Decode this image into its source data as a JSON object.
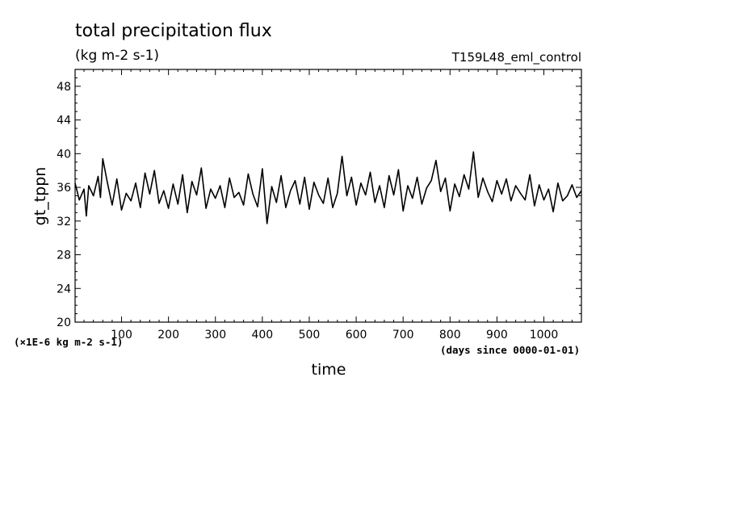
{
  "chart_data": {
    "type": "line",
    "title": "total precipitation flux",
    "subtitle": "(kg m-2 s-1)",
    "run_label": "T159L48_eml_control",
    "xlabel": "time",
    "x_units": "(days since 0000-01-01)",
    "ylabel": "gt_tppn",
    "y_multiplier": "(×1E-6 kg m-2 s-1)",
    "xlim": [
      1,
      1080
    ],
    "ylim": [
      20,
      50
    ],
    "x_ticks": [
      100,
      200,
      300,
      400,
      500,
      600,
      700,
      800,
      900,
      1000
    ],
    "y_ticks": [
      20,
      24,
      28,
      32,
      36,
      40,
      44,
      48
    ],
    "grid": false,
    "series": [
      {
        "x": [
          1,
          10,
          20,
          25,
          30,
          40,
          50,
          55,
          60,
          70,
          80,
          90,
          100,
          110,
          120,
          130,
          140,
          150,
          160,
          170,
          180,
          190,
          200,
          210,
          220,
          230,
          240,
          250,
          260,
          270,
          280,
          290,
          300,
          310,
          320,
          330,
          340,
          350,
          360,
          370,
          380,
          390,
          400,
          410,
          420,
          430,
          440,
          450,
          460,
          470,
          480,
          490,
          500,
          510,
          520,
          530,
          540,
          550,
          560,
          570,
          580,
          590,
          600,
          610,
          620,
          630,
          640,
          650,
          660,
          670,
          680,
          690,
          700,
          710,
          720,
          730,
          740,
          750,
          760,
          770,
          780,
          790,
          800,
          810,
          820,
          830,
          840,
          850,
          860,
          870,
          880,
          890,
          900,
          910,
          920,
          930,
          940,
          950,
          960,
          970,
          980,
          990,
          1000,
          1010,
          1020,
          1030,
          1040,
          1050,
          1060,
          1070,
          1080
        ],
        "y": [
          36.5,
          34.5,
          35.8,
          32.6,
          36.2,
          35.0,
          37.3,
          34.8,
          39.4,
          36.5,
          33.9,
          37.0,
          33.3,
          35.3,
          34.4,
          36.5,
          33.6,
          37.7,
          35.2,
          38.0,
          34.1,
          35.6,
          33.5,
          36.4,
          34.0,
          37.5,
          33.0,
          36.7,
          35.1,
          38.3,
          33.5,
          35.8,
          34.7,
          36.2,
          33.6,
          37.1,
          34.8,
          35.4,
          33.9,
          37.6,
          35.2,
          33.7,
          38.2,
          31.7,
          36.1,
          34.2,
          37.4,
          33.6,
          35.6,
          36.8,
          34.0,
          37.2,
          33.4,
          36.6,
          35.1,
          34.1,
          37.1,
          33.6,
          35.3,
          39.7,
          35.0,
          37.2,
          33.9,
          36.5,
          35.1,
          37.8,
          34.2,
          36.2,
          33.6,
          37.4,
          35.1,
          38.1,
          33.2,
          36.2,
          34.7,
          37.2,
          34.0,
          35.9,
          36.8,
          39.2,
          35.5,
          37.1,
          33.2,
          36.4,
          34.9,
          37.5,
          35.8,
          40.2,
          34.8,
          37.1,
          35.5,
          34.3,
          36.8,
          35.2,
          37.0,
          34.4,
          36.2,
          35.3,
          34.5,
          37.5,
          33.8,
          36.3,
          34.5,
          35.8,
          33.1,
          36.5,
          34.4,
          35.0,
          36.3,
          34.8,
          35.6
        ]
      }
    ]
  }
}
